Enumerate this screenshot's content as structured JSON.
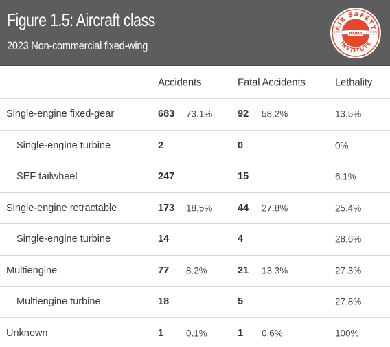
{
  "header": {
    "title": "Figure 1.5: Aircraft class",
    "subtitle": "2023 Non-commercial fixed-wing",
    "logo": {
      "icon": "aopa-air-safety-institute-logo",
      "top_text": "AIR SAFETY",
      "center_text": "AOPA",
      "bottom_text": "INSTITUTE",
      "color": "#e8472b"
    }
  },
  "table": {
    "columns": [
      "Accidents",
      "Fatal Accidents",
      "Lethality"
    ],
    "rows": [
      {
        "label": "Single-engine fixed-gear",
        "indent": false,
        "accidents": "683",
        "accidents_pct": "73.1%",
        "fatal": "92",
        "fatal_pct": "58.2%",
        "lethality": "13.5%"
      },
      {
        "label": "Single-engine turbine",
        "indent": true,
        "accidents": "2",
        "accidents_pct": "",
        "fatal": "0",
        "fatal_pct": "",
        "lethality": "0%"
      },
      {
        "label": "SEF tailwheel",
        "indent": true,
        "accidents": "247",
        "accidents_pct": "",
        "fatal": "15",
        "fatal_pct": "",
        "lethality": "6.1%"
      },
      {
        "label": "Single-engine retractable",
        "indent": false,
        "accidents": "173",
        "accidents_pct": "18.5%",
        "fatal": "44",
        "fatal_pct": "27.8%",
        "lethality": "25.4%"
      },
      {
        "label": "Single-engine turbine",
        "indent": true,
        "accidents": "14",
        "accidents_pct": "",
        "fatal": "4",
        "fatal_pct": "",
        "lethality": "28.6%"
      },
      {
        "label": "Multiengine",
        "indent": false,
        "accidents": "77",
        "accidents_pct": "8.2%",
        "fatal": "21",
        "fatal_pct": "13.3%",
        "lethality": "27.3%"
      },
      {
        "label": "Multiengine turbine",
        "indent": true,
        "accidents": "18",
        "accidents_pct": "",
        "fatal": "5",
        "fatal_pct": "",
        "lethality": "27.8%"
      },
      {
        "label": "Unknown",
        "indent": false,
        "accidents": "1",
        "accidents_pct": "0.1%",
        "fatal": "1",
        "fatal_pct": "0.6%",
        "lethality": "100%"
      }
    ]
  }
}
